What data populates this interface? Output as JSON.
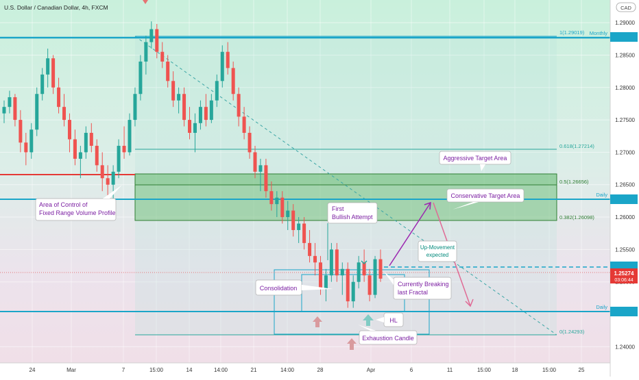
{
  "header": {
    "symbol_title": "U.S. Dollar / Canadian Dollar, 4h, FXCM",
    "currency_badge": "CAD"
  },
  "price_axis": {
    "ticks": [
      "1.29000",
      "1.28500",
      "1.28000",
      "1.27500",
      "1.27000",
      "1.26500",
      "1.26000",
      "1.25500",
      "1.25000",
      "1.24000"
    ],
    "current_price": "1.25274",
    "countdown": "03:06:44"
  },
  "time_axis": {
    "ticks": [
      "24",
      "Mar",
      "7",
      "15:00",
      "14",
      "14:00",
      "21",
      "14:00",
      "28",
      "Apr",
      "6",
      "11",
      "15:00",
      "18",
      "15:00",
      "25"
    ]
  },
  "chart_data": {
    "type": "candlestick",
    "title": "U.S. Dollar / Canadian Dollar, 4h, FXCM",
    "ylim": [
      1.2375,
      1.2935
    ],
    "grid": true,
    "candles_ohlc_approx": [
      [
        1.276,
        1.278,
        1.2745,
        1.277
      ],
      [
        1.277,
        1.2795,
        1.276,
        1.2785
      ],
      [
        1.2785,
        1.279,
        1.274,
        1.275
      ],
      [
        1.275,
        1.2765,
        1.27,
        1.2715
      ],
      [
        1.2715,
        1.273,
        1.268,
        1.27
      ],
      [
        1.27,
        1.2745,
        1.269,
        1.2735
      ],
      [
        1.2735,
        1.28,
        1.2725,
        1.279
      ],
      [
        1.279,
        1.283,
        1.278,
        1.282
      ],
      [
        1.282,
        1.286,
        1.28,
        1.2845
      ],
      [
        1.2845,
        1.285,
        1.279,
        1.28
      ],
      [
        1.28,
        1.2815,
        1.276,
        1.277
      ],
      [
        1.277,
        1.279,
        1.274,
        1.275
      ],
      [
        1.275,
        1.276,
        1.27,
        1.272
      ],
      [
        1.272,
        1.2735,
        1.268,
        1.269
      ],
      [
        1.269,
        1.271,
        1.266,
        1.27
      ],
      [
        1.27,
        1.274,
        1.269,
        1.273
      ],
      [
        1.273,
        1.2745,
        1.27,
        1.271
      ],
      [
        1.271,
        1.272,
        1.267,
        1.268
      ],
      [
        1.268,
        1.27,
        1.264,
        1.266
      ],
      [
        1.266,
        1.268,
        1.26,
        1.265
      ],
      [
        1.265,
        1.268,
        1.262,
        1.267
      ],
      [
        1.267,
        1.272,
        1.266,
        1.271
      ],
      [
        1.271,
        1.274,
        1.269,
        1.27
      ],
      [
        1.27,
        1.276,
        1.2695,
        1.275
      ],
      [
        1.275,
        1.28,
        1.274,
        1.279
      ],
      [
        1.279,
        1.285,
        1.278,
        1.284
      ],
      [
        1.284,
        1.288,
        1.282,
        1.287
      ],
      [
        1.287,
        1.2902,
        1.286,
        1.289
      ],
      [
        1.289,
        1.2898,
        1.2845,
        1.2855
      ],
      [
        1.2855,
        1.287,
        1.283,
        1.284
      ],
      [
        1.284,
        1.285,
        1.28,
        1.281
      ],
      [
        1.281,
        1.2825,
        1.277,
        1.278
      ],
      [
        1.278,
        1.28,
        1.276,
        1.279
      ],
      [
        1.279,
        1.28,
        1.274,
        1.275
      ],
      [
        1.275,
        1.277,
        1.272,
        1.273
      ],
      [
        1.273,
        1.276,
        1.27,
        1.2745
      ],
      [
        1.2745,
        1.278,
        1.2735,
        1.277
      ],
      [
        1.277,
        1.279,
        1.274,
        1.275
      ],
      [
        1.275,
        1.279,
        1.2745,
        1.278
      ],
      [
        1.278,
        1.282,
        1.277,
        1.281
      ],
      [
        1.281,
        1.2865,
        1.28,
        1.2855
      ],
      [
        1.2855,
        1.287,
        1.282,
        1.283
      ],
      [
        1.283,
        1.284,
        1.278,
        1.279
      ],
      [
        1.279,
        1.28,
        1.274,
        1.2755
      ],
      [
        1.2755,
        1.277,
        1.272,
        1.273
      ],
      [
        1.273,
        1.274,
        1.269,
        1.27
      ],
      [
        1.27,
        1.271,
        1.266,
        1.267
      ],
      [
        1.267,
        1.269,
        1.264,
        1.268
      ],
      [
        1.268,
        1.269,
        1.263,
        1.264
      ],
      [
        1.264,
        1.2655,
        1.261,
        1.262
      ],
      [
        1.262,
        1.264,
        1.26,
        1.263
      ],
      [
        1.263,
        1.264,
        1.259,
        1.26
      ],
      [
        1.26,
        1.2625,
        1.258,
        1.261
      ],
      [
        1.261,
        1.262,
        1.257,
        1.258
      ],
      [
        1.258,
        1.26,
        1.256,
        1.259
      ],
      [
        1.259,
        1.26,
        1.255,
        1.256
      ],
      [
        1.256,
        1.258,
        1.253,
        1.254
      ],
      [
        1.254,
        1.256,
        1.251,
        1.253
      ],
      [
        1.253,
        1.254,
        1.248,
        1.249
      ],
      [
        1.249,
        1.252,
        1.247,
        1.251
      ],
      [
        1.251,
        1.256,
        1.25,
        1.255
      ],
      [
        1.255,
        1.256,
        1.25,
        1.251
      ],
      [
        1.251,
        1.253,
        1.248,
        1.252
      ],
      [
        1.252,
        1.253,
        1.246,
        1.247
      ],
      [
        1.247,
        1.251,
        1.246,
        1.25
      ],
      [
        1.25,
        1.254,
        1.249,
        1.253
      ],
      [
        1.253,
        1.255,
        1.25,
        1.251
      ],
      [
        1.251,
        1.252,
        1.247,
        1.248
      ],
      [
        1.248,
        1.254,
        1.2475,
        1.2535
      ],
      [
        1.2535,
        1.255,
        1.25,
        1.2505
      ]
    ],
    "horizontal_levels": [
      {
        "label": "Monthly",
        "value": 1.29019
      },
      {
        "label": "Daily",
        "value": 1.2646
      },
      {
        "label": "Daily",
        "value": 1.2462
      }
    ],
    "volume_profile_level": {
      "label": "Area of Control of Fixed Range Volume Profile",
      "value": 1.26796
    },
    "fibonacci": [
      {
        "label": "1(1.29019)",
        "value": 1.29019
      },
      {
        "label": "0.618(1.27214)",
        "value": 1.27214
      },
      {
        "label": "0.5(1.26656)",
        "value": 1.26656
      },
      {
        "label": "0.382(1.26098)",
        "value": 1.26098
      },
      {
        "label": "0(1.24293)",
        "value": 1.24293
      }
    ],
    "zones": [
      {
        "label": "Aggressive Target Area",
        "from": 1.26656,
        "to": 1.2681
      },
      {
        "label": "Conservative Target Area",
        "from": 1.26098,
        "to": 1.26656
      }
    ],
    "consolidation_range": {
      "from": 1.24293,
      "to": 1.25406
    },
    "current_price": 1.25274,
    "annotations": [
      "Aggressive Target Area",
      "Conservative Target Area",
      "Area of Control of Fixed Range Volume Profile",
      "First Bullish Attempt",
      "Up-Movement expected",
      "Consolidation",
      "Currently Breaking last Fractal",
      "HL",
      "Exhaustion Candle"
    ]
  },
  "fib_labels": {
    "f1": "1(1.29019)",
    "f618": "0.618(1.27214)",
    "f5": "0.5(1.26656)",
    "f382": "0.382(1.26098)",
    "f0": "0(1.24293)"
  },
  "level_labels": {
    "monthly": "Monthly",
    "daily_upper": "Daily",
    "daily_lower": "Daily"
  },
  "callouts": {
    "aggressive": "Aggressive Target Area",
    "conservative": "Conservative Target Area",
    "area_control_line1": "Area of Control of",
    "area_control_line2": "Fixed Range Volume Profile",
    "first_bullish_line1": "First",
    "first_bullish_line2": "Bullish Attempt",
    "up_move_line1": "Up-Movement",
    "up_move_line2": "expected",
    "consolidation": "Consolidation",
    "breaking_line1": "Currently Breaking",
    "breaking_line2": "last Fractal",
    "hl": "HL",
    "exhaustion": "Exhaustion Candle"
  },
  "colors": {
    "level_line": "#1aa5c8",
    "vp_line": "#e53935",
    "target_zone": "#4caf50",
    "bull": "#26a69a",
    "bear": "#ef5350",
    "purple_text": "#7b1fa2",
    "price_badge": "#e53935"
  }
}
